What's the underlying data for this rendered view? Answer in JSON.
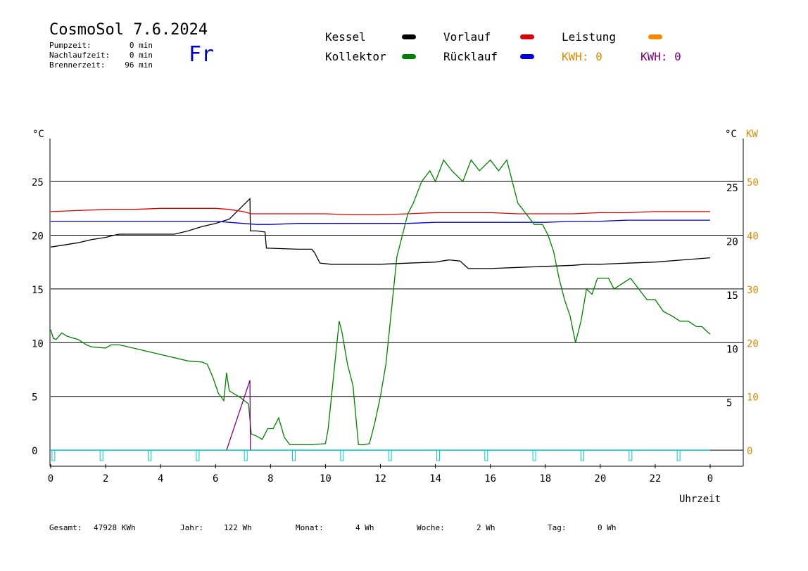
{
  "header": {
    "title": "CosmoSol 7.6.2024",
    "day": "Fr",
    "stats": [
      {
        "label": "Pumpzeit:",
        "value": "0 min"
      },
      {
        "label": "Nachlaufzeit:",
        "value": "0 min"
      },
      {
        "label": "Brennerzeit:",
        "value": "96 min"
      }
    ]
  },
  "legend": {
    "kessel": {
      "label": "Kessel",
      "color": "#000000"
    },
    "vorlauf": {
      "label": "Vorlauf",
      "color": "#dd0000"
    },
    "leistung": {
      "label": "Leistung",
      "color": "#ff8800"
    },
    "kollektor": {
      "label": "Kollektor",
      "color": "#008000"
    },
    "ruecklauf": {
      "label": "Rücklauf",
      "color": "#0000dd"
    },
    "kwh_orange": {
      "label": "KWH: 0",
      "color": "#dd8800"
    },
    "kwh_purple": {
      "label": "KWH: 0",
      "color": "#800080"
    }
  },
  "footer": [
    {
      "label": "Gesamt:",
      "value": "47928 KWh"
    },
    {
      "label": "Jahr:",
      "value": "122 Wh"
    },
    {
      "label": "Monat:",
      "value": "4 Wh"
    },
    {
      "label": "Woche:",
      "value": "2 Wh"
    },
    {
      "label": "Tag:",
      "value": "0 Wh"
    }
  ],
  "chart_data": {
    "type": "line",
    "xlabel": "Uhrzeit",
    "ylabel_left": "°C",
    "ylabel_right": "°C",
    "ylabel_kw": "KW",
    "xlim": [
      0,
      24
    ],
    "ylim": [
      -1.5,
      29
    ],
    "x_ticks": [
      "0",
      "2",
      "4",
      "6",
      "8",
      "10",
      "12",
      "14",
      "16",
      "18",
      "20",
      "22",
      "0"
    ],
    "y_ticks_left": [
      "0",
      "5",
      "10",
      "15",
      "20",
      "25"
    ],
    "y_ticks_right": [
      "5",
      "10",
      "15",
      "20",
      "25"
    ],
    "y_ticks_kw": [
      "0",
      "10",
      "20",
      "30",
      "40",
      "50"
    ],
    "grid": "horizontal",
    "series": [
      {
        "name": "Kessel",
        "color": "#000000",
        "x": [
          0,
          0.5,
          1,
          1.5,
          2,
          2.3,
          2.5,
          4.5,
          5,
          5.5,
          6,
          6.5,
          7.25,
          7.27,
          7.5,
          7.8,
          7.85,
          9,
          9.5,
          9.6,
          9.8,
          10.2,
          11,
          12,
          13,
          14,
          14.5,
          14.9,
          15.2,
          16,
          17,
          18,
          19,
          19.5,
          20,
          21,
          22,
          23,
          24
        ],
        "y": [
          18.9,
          19.1,
          19.3,
          19.6,
          19.8,
          20,
          20.1,
          20.1,
          20.4,
          20.8,
          21.1,
          21.5,
          23.4,
          20.4,
          20.4,
          20.3,
          18.8,
          18.7,
          18.7,
          18.4,
          17.4,
          17.3,
          17.3,
          17.3,
          17.4,
          17.5,
          17.7,
          17.6,
          16.9,
          16.9,
          17,
          17.1,
          17.2,
          17.3,
          17.3,
          17.4,
          17.5,
          17.7,
          17.9
        ]
      },
      {
        "name": "Vorlauf",
        "color": "#dd0000",
        "x": [
          0,
          1,
          2,
          3,
          4,
          5,
          6,
          6.5,
          7,
          7.3,
          8,
          9,
          10,
          11,
          12,
          13,
          14,
          15,
          16,
          17,
          18,
          19,
          20,
          21,
          22,
          23,
          24
        ],
        "y": [
          22.2,
          22.3,
          22.4,
          22.4,
          22.5,
          22.5,
          22.5,
          22.4,
          22.2,
          22,
          22,
          22,
          22,
          21.9,
          21.9,
          22,
          22.1,
          22.1,
          22.1,
          22,
          22,
          22,
          22.1,
          22.1,
          22.2,
          22.2,
          22.2
        ]
      },
      {
        "name": "Rücklauf",
        "color": "#0000dd",
        "x": [
          0,
          1,
          2,
          3,
          4,
          5,
          6,
          6.5,
          7,
          7.5,
          8,
          9,
          10,
          11,
          12,
          13,
          14,
          15,
          16,
          17,
          18,
          19,
          20,
          21,
          22,
          23,
          24
        ],
        "y": [
          21.3,
          21.3,
          21.3,
          21.3,
          21.3,
          21.3,
          21.3,
          21.2,
          21.1,
          21,
          21,
          21.1,
          21.1,
          21.1,
          21.1,
          21.1,
          21.2,
          21.2,
          21.2,
          21.2,
          21.2,
          21.3,
          21.3,
          21.4,
          21.4,
          21.4,
          21.4
        ]
      },
      {
        "name": "Kollektor",
        "color": "#008000",
        "x": [
          0,
          0.1,
          0.2,
          0.4,
          0.6,
          1,
          1.3,
          1.5,
          2,
          2.2,
          2.5,
          3,
          3.5,
          4,
          4.5,
          5,
          5.5,
          5.7,
          5.9,
          6.1,
          6.3,
          6.4,
          6.5,
          6.9,
          7.2,
          7.3,
          7.5,
          7.7,
          7.9,
          8.1,
          8.3,
          8.5,
          8.7,
          9,
          9.5,
          10,
          10.1,
          10.3,
          10.5,
          10.6,
          10.8,
          11,
          11.2,
          11.4,
          11.6,
          11.8,
          12,
          12.2,
          12.4,
          12.6,
          12.8,
          13,
          13.2,
          13.5,
          13.8,
          14,
          14.3,
          14.6,
          15,
          15.3,
          15.6,
          16,
          16.3,
          16.6,
          16.8,
          17,
          17.3,
          17.6,
          17.9,
          18.1,
          18.3,
          18.5,
          18.7,
          18.9,
          19.1,
          19.3,
          19.5,
          19.7,
          19.9,
          20.1,
          20.3,
          20.5,
          20.8,
          21.1,
          21.4,
          21.7,
          22,
          22.3,
          22.6,
          22.9,
          23.2,
          23.5,
          23.7,
          23.9,
          24
        ],
        "y": [
          11.2,
          10.4,
          10.3,
          10.9,
          10.6,
          10.3,
          9.8,
          9.6,
          9.5,
          9.8,
          9.8,
          9.5,
          9.2,
          8.9,
          8.6,
          8.3,
          8.2,
          8,
          6.8,
          5.3,
          4.6,
          7.2,
          5.5,
          4.9,
          4.3,
          1.5,
          1.3,
          1,
          2,
          2,
          3,
          1.2,
          0.5,
          0.5,
          0.5,
          0.6,
          2,
          7,
          12,
          11,
          8,
          6,
          0.5,
          0.5,
          0.6,
          2.6,
          5,
          8,
          13,
          18,
          20,
          22,
          23,
          25,
          26,
          25,
          27,
          26,
          25,
          27,
          26,
          27,
          26,
          27,
          25,
          23,
          22,
          21,
          21,
          20,
          18.5,
          16,
          14,
          12.5,
          10,
          12,
          15,
          14.5,
          16,
          16,
          16,
          15,
          15.5,
          16,
          15,
          14,
          14,
          12.9,
          12.5,
          12,
          12,
          11.5,
          11.5,
          11,
          10.8
        ]
      },
      {
        "name": "Leistung",
        "color": "#800080",
        "x": [
          6.4,
          7.25,
          7.27
        ],
        "y": [
          0,
          6.5,
          0
        ]
      }
    ]
  }
}
